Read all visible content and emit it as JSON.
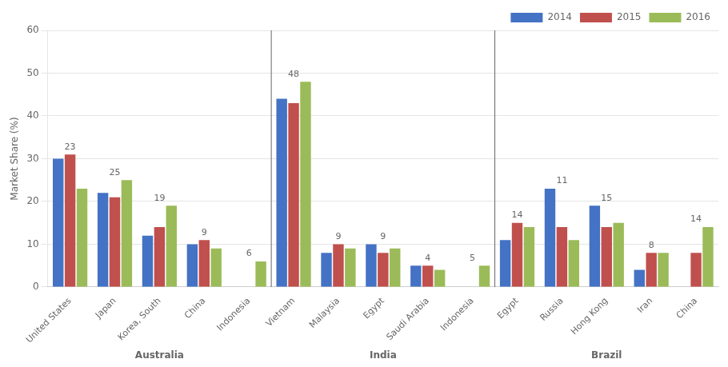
{
  "chart_data": {
    "type": "bar",
    "ylabel": "Market Share (%)",
    "categories": [
      "United States",
      "Japan",
      "Korea, South",
      "China",
      "Indonesia",
      "Vietnam",
      "Malaysia",
      "Egypt",
      "Saudi Arabia",
      "Indonesia",
      "Egypt",
      "Russia",
      "Hong Kong",
      "Iran",
      "China"
    ],
    "groups": [
      {
        "label": "Australia",
        "size": 5
      },
      {
        "label": "India",
        "size": 5
      },
      {
        "label": "Brazil",
        "size": 5
      }
    ],
    "series": [
      {
        "name": "2014",
        "color": "#4472C4",
        "values": [
          30,
          22,
          12,
          10,
          0,
          44,
          8,
          10,
          5,
          0,
          11,
          23,
          19,
          4,
          0
        ]
      },
      {
        "name": "2015",
        "color": "#C0504D",
        "values": [
          31,
          21,
          14,
          11,
          0,
          43,
          10,
          8,
          5,
          0,
          15,
          14,
          14,
          8,
          8
        ]
      },
      {
        "name": "2016",
        "color": "#9BBB59",
        "values": [
          23,
          25,
          19,
          9,
          6,
          48,
          9,
          9,
          4,
          5,
          14,
          11,
          15,
          8,
          14
        ]
      }
    ],
    "annotations": [
      23,
      25,
      19,
      9,
      6,
      48,
      9,
      9,
      4,
      5,
      14,
      11,
      15,
      8,
      14
    ],
    "ylim": [
      0,
      60
    ],
    "yticks": [
      0,
      10,
      20,
      30,
      40,
      50,
      60
    ],
    "grid": true,
    "legend": "upper right"
  }
}
